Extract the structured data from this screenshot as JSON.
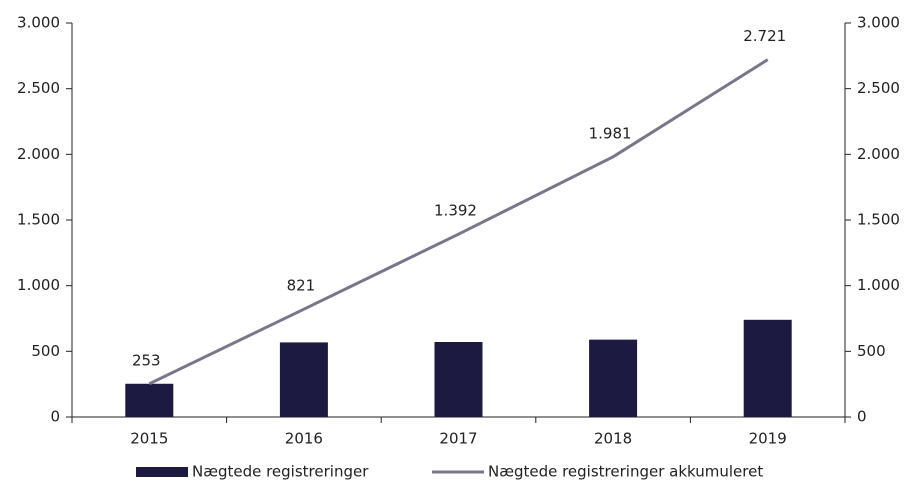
{
  "chart_data": {
    "type": "combo",
    "categories": [
      "2015",
      "2016",
      "2017",
      "2018",
      "2019"
    ],
    "series": [
      {
        "name": "Nægtede registreringer",
        "type": "bar",
        "color": "#1c1a40",
        "values": [
          253,
          568,
          571,
          589,
          740
        ]
      },
      {
        "name": "Nægtede registreringer akkumuleret",
        "type": "line",
        "color": "#77768a",
        "axis": "y2",
        "values": [
          253,
          821,
          1392,
          1981,
          2721
        ],
        "value_labels": [
          "253",
          "821",
          "1.392",
          "1.981",
          "2.721"
        ]
      }
    ],
    "ylim": [
      0,
      3000
    ],
    "yticks": [
      0,
      500,
      {
        "value": 1000,
        "label": "1.000"
      },
      {
        "value": 1500,
        "label": "1.500"
      },
      {
        "value": 2000,
        "label": "2.000"
      },
      {
        "value": 2500,
        "label": "2.500"
      },
      {
        "value": 3000,
        "label": "3.000"
      }
    ],
    "y2lim": [
      0,
      3000
    ],
    "y2ticks": [
      0,
      500,
      {
        "value": 1000,
        "label": "1.000"
      },
      {
        "value": 1500,
        "label": "1.500"
      },
      {
        "value": 2000,
        "label": "2.000"
      },
      {
        "value": 2500,
        "label": "2.500"
      },
      {
        "value": 3000,
        "label": "3.000"
      }
    ],
    "legend": "bottom"
  }
}
